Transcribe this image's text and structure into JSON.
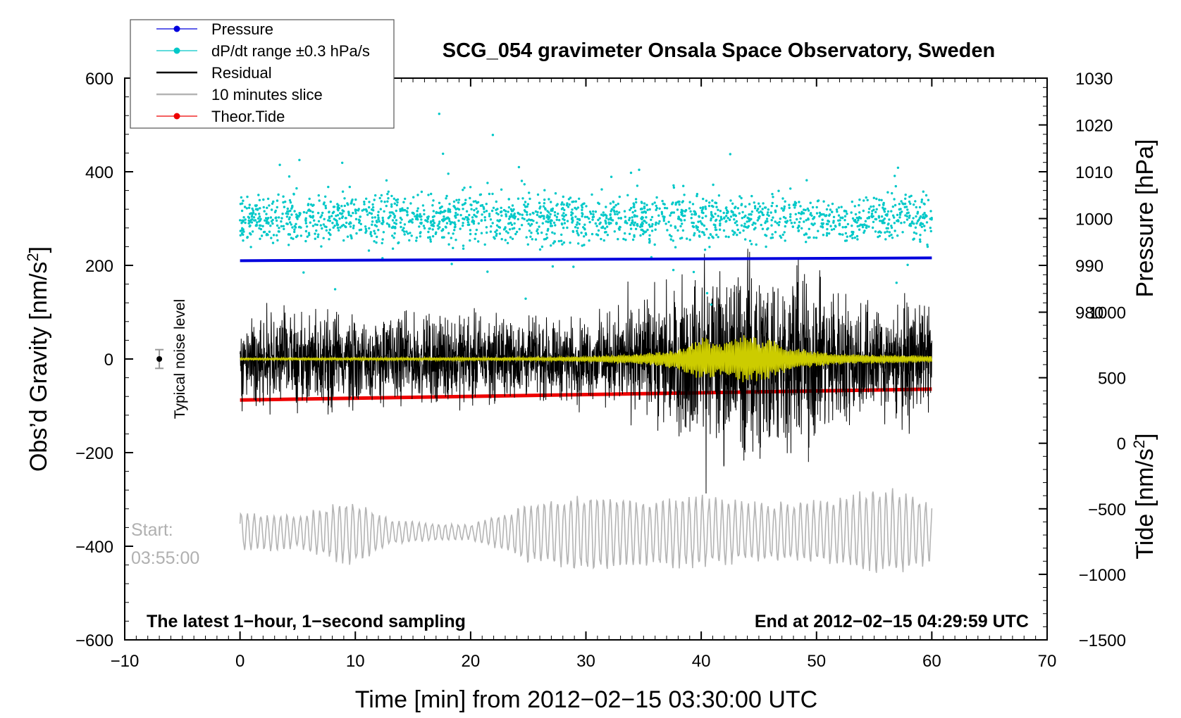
{
  "chart_data": {
    "type": "line",
    "title": "SCG_054 gravimeter Onsala Space Observatory, Sweden",
    "xlabel": "Time [min] from 2012−02−15 03:30:00 UTC",
    "ylabel": "Obs’d Gravity [nm/s²]",
    "ylabel_parts": {
      "base": "Obs’d Gravity [nm/s",
      "sup": "2",
      "end": "]"
    },
    "y2label": "Pressure [hPa]",
    "y3label_parts": {
      "base": "Tide [nm/s",
      "sup": "2",
      "end": "]"
    },
    "xlim": [
      -10,
      70
    ],
    "ylim": [
      -600,
      600
    ],
    "xticks": [
      -10,
      0,
      10,
      20,
      30,
      40,
      50,
      60,
      70
    ],
    "xtick_labels": [
      "−10",
      "0",
      "10",
      "20",
      "30",
      "40",
      "50",
      "60",
      "70"
    ],
    "yticks": [
      -600,
      -400,
      -200,
      0,
      200,
      400,
      600
    ],
    "ytick_labels": [
      "−600",
      "−400",
      "−200",
      "0",
      "200",
      "400",
      "600"
    ],
    "pressure_axis": {
      "ticks": [
        980,
        990,
        1000,
        1010,
        1020,
        1030
      ],
      "tick_labels": [
        "980",
        "990",
        "1000",
        "1010",
        "1020",
        "1030"
      ],
      "map": {
        "hpa": [
          990,
          1030
        ],
        "gravity": [
          200,
          600
        ]
      }
    },
    "tide_axis": {
      "ticks": [
        -1500,
        -1000,
        -500,
        0,
        500,
        1000
      ],
      "tick_labels": [
        "−1500",
        "−1000",
        "−500",
        "0",
        "500",
        "1000"
      ],
      "map": {
        "tide": [
          -1500,
          1000
        ],
        "gravity": [
          -600,
          100
        ]
      }
    },
    "legend": [
      {
        "label": "Pressure",
        "color": "#0000dd",
        "marker": "dot"
      },
      {
        "label": "dP/dt range ±0.3 hPa/s",
        "color": "#00c8c8",
        "marker": "dot"
      },
      {
        "label": "Residual",
        "color": "#000000",
        "marker": "line"
      },
      {
        "label": "10 minutes slice",
        "color": "#b4b4b4",
        "marker": "line"
      },
      {
        "label": "Theor.Tide",
        "color": "#ee0000",
        "marker": "dot"
      }
    ],
    "series": [
      {
        "name": "Pressure",
        "axis": "pressure_hPa",
        "color": "#0000dd",
        "x": [
          0,
          60
        ],
        "y": [
          991.0,
          991.6
        ]
      },
      {
        "name": "dP/dt range ±0.3 hPa/s",
        "axis": "gravity",
        "color": "#00c8c8",
        "center": 300,
        "spread": 40
      },
      {
        "name": "Residual",
        "axis": "gravity",
        "color": "#000000",
        "center": 0,
        "envelope_x": [
          0,
          5,
          10,
          15,
          20,
          25,
          30,
          35,
          38,
          40,
          42,
          44,
          46,
          48,
          50,
          52,
          55,
          58,
          60
        ],
        "envelope_amp": [
          80,
          90,
          85,
          75,
          80,
          70,
          70,
          100,
          130,
          150,
          170,
          180,
          170,
          160,
          150,
          120,
          100,
          95,
          90
        ],
        "extremes": [
          {
            "x": 49.3,
            "y": -220
          },
          {
            "x": 44.2,
            "y": 180
          },
          {
            "x": 45.0,
            "y": -180
          }
        ]
      },
      {
        "name": "Residual (filtered)",
        "axis": "gravity",
        "color": "#cccc00",
        "center": 0,
        "envelope_x": [
          0,
          25,
          30,
          35,
          38,
          40,
          42,
          44,
          46,
          48,
          50,
          52,
          55,
          60
        ],
        "envelope_amp": [
          2,
          3,
          5,
          10,
          20,
          40,
          30,
          45,
          35,
          20,
          15,
          10,
          8,
          6
        ]
      },
      {
        "name": "10 minutes slice",
        "axis": "gravity",
        "color": "#b4b4b4",
        "center": -370,
        "envelope_x": [
          0,
          5,
          10,
          13,
          20,
          23,
          25,
          30,
          35,
          40,
          45,
          50,
          55,
          57,
          60
        ],
        "envelope_amp": [
          40,
          35,
          70,
          25,
          15,
          40,
          60,
          80,
          65,
          75,
          60,
          65,
          85,
          90,
          60
        ]
      },
      {
        "name": "Theor.Tide",
        "axis": "tide",
        "color": "#ee0000",
        "x": [
          0,
          60
        ],
        "y": [
          330,
          413
        ]
      }
    ],
    "noise_level": {
      "x": -7,
      "y": 0,
      "err": 20,
      "label": "Typical noise level"
    },
    "annotations": {
      "start_label": "Start:",
      "start_time": "03:55:00",
      "bottom_left": "The latest 1−hour, 1−second sampling",
      "bottom_right": "End at 2012−02−15 04:29:59 UTC"
    },
    "grid": false,
    "legend_position": "top-left"
  }
}
